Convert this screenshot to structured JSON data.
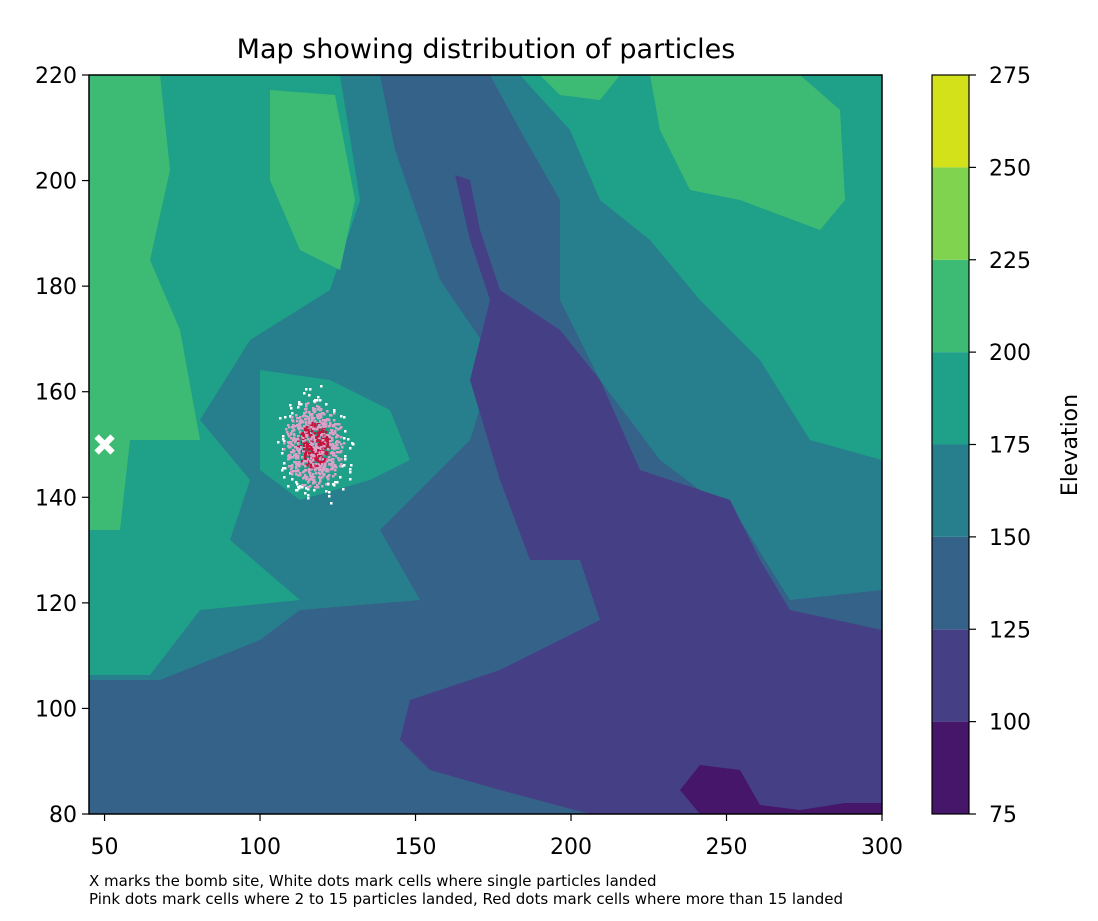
{
  "chart_data": {
    "type": "heatmap",
    "title": "Map showing distribution of particles",
    "xlim": [
      45,
      300
    ],
    "ylim": [
      80,
      220
    ],
    "x_ticks": [
      50,
      100,
      150,
      200,
      250,
      300
    ],
    "y_ticks": [
      80,
      100,
      120,
      140,
      160,
      180,
      200,
      220
    ],
    "grid": false,
    "colorbar": {
      "label": "Elevation",
      "levels": [
        75,
        100,
        125,
        150,
        175,
        200,
        225,
        250,
        275
      ],
      "colors": [
        "#46166b",
        "#453f85",
        "#356289",
        "#277f8e",
        "#1fa088",
        "#3dbb74",
        "#7fd34e",
        "#d3e11a"
      ]
    },
    "bomb_site": {
      "x": 50,
      "y": 150,
      "marker": "X",
      "color": "#ffffff"
    },
    "particle_cloud": {
      "center": {
        "x": 117,
        "y": 150
      },
      "single_particle_color": "#ffffff",
      "few_particles_color": "#d9a0c8",
      "many_particles_color": "#c8143c"
    },
    "captions": [
      "X marks the bomb site, White dots mark cells where single particles landed",
      "Pink dots mark cells where 2 to 15 particles landed, Red dots mark cells where more than 15 landed"
    ]
  }
}
